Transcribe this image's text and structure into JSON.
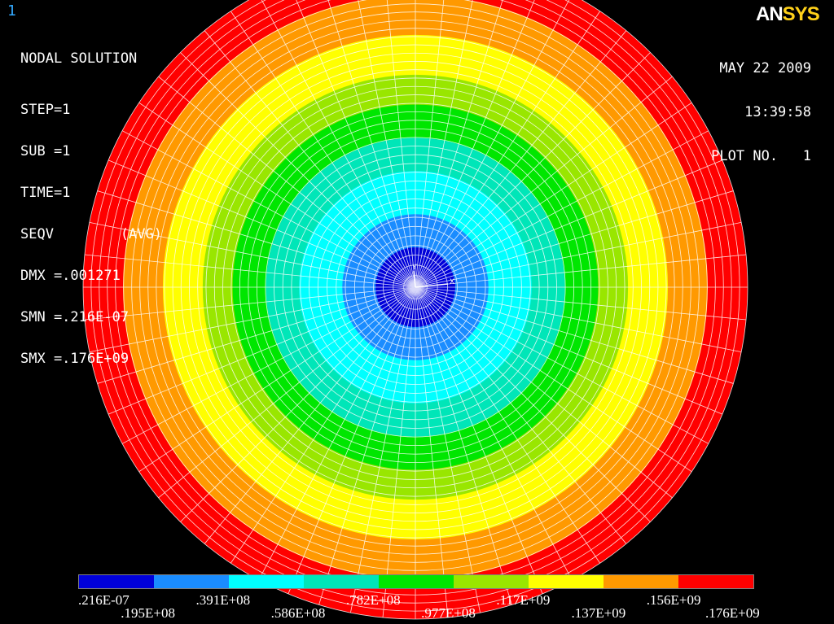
{
  "window": {
    "number": "1"
  },
  "info": {
    "title": "NODAL SOLUTION",
    "lines": [
      "STEP=1",
      "SUB =1",
      "TIME=1",
      "SEQV        (AVG)",
      "DMX =.001271",
      "SMN =.216E-07",
      "SMX =.176E+09"
    ]
  },
  "logo": {
    "part1": "AN",
    "part2": "SYS"
  },
  "date": {
    "date": "MAY 22 2009",
    "time": "13:39:58",
    "plot_no": "PLOT NO.   1"
  },
  "axis_labels": {
    "x": "X",
    "y": "Y"
  },
  "colors": {
    "background": "#000000",
    "mesh": "#ffffff",
    "contours": [
      "#0000d9",
      "#1a8cff",
      "#00ffff",
      "#00e6b8",
      "#00e600",
      "#99e600",
      "#ffff00",
      "#ff9900",
      "#ff0000"
    ]
  },
  "legend": {
    "colors": [
      "#0000d9",
      "#1a8cff",
      "#00ffff",
      "#00e6b8",
      "#00e600",
      "#99e600",
      "#ffff00",
      "#ff9900",
      "#ff0000"
    ],
    "labels": [
      ".216E-07",
      ".195E+08",
      ".391E+08",
      ".586E+08",
      ".782E+08",
      ".977E+08",
      ".117E+09",
      ".137E+09",
      ".156E+09",
      ".176E+09"
    ]
  }
}
